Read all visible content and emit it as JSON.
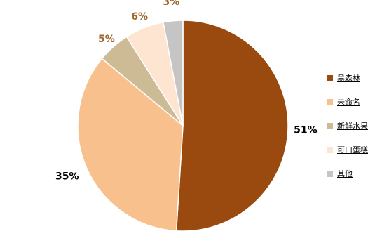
{
  "chart_data": {
    "type": "pie",
    "title": "",
    "labels": [
      "黑森林",
      "未命名",
      "新鲜水果",
      "可口蛋糕",
      "其他"
    ],
    "values": [
      51,
      35,
      5,
      6,
      3
    ],
    "data_labels": [
      "51%",
      "35%",
      "5%",
      "6%",
      "3%"
    ],
    "colors": [
      "#9b4a0f",
      "#f8c08d",
      "#cdbb96",
      "#fde5d2",
      "#c5c5c5"
    ],
    "legend_position": "right"
  }
}
